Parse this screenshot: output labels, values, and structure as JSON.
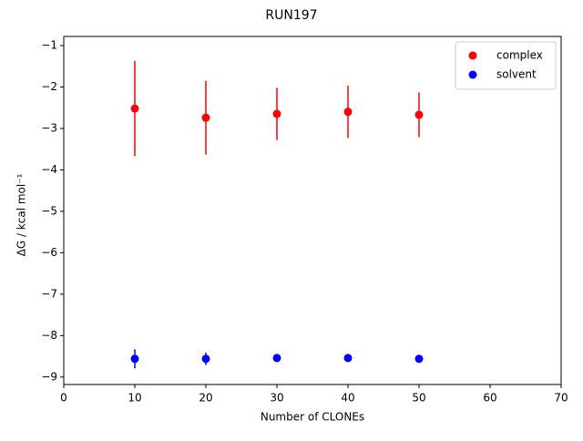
{
  "chart_data": {
    "type": "scatter",
    "title": "RUN197",
    "x_label": "Number of CLONEs",
    "y_label": "ΔG / kcal mol⁻¹",
    "x": [
      10,
      20,
      30,
      40,
      50
    ],
    "series": [
      {
        "name": "complex",
        "color": "#ff0000",
        "values": [
          -2.52,
          -2.74,
          -2.65,
          -2.6,
          -2.67
        ],
        "errors": [
          1.15,
          0.89,
          0.63,
          0.63,
          0.54
        ]
      },
      {
        "name": "solvent",
        "color": "#0000ff",
        "values": [
          -8.56,
          -8.56,
          -8.54,
          -8.54,
          -8.56
        ],
        "errors": [
          0.23,
          0.15,
          0.08,
          0.03,
          0.03
        ]
      }
    ],
    "xlim": [
      0,
      70
    ],
    "xticks": [
      0,
      10,
      20,
      30,
      40,
      50,
      60,
      70
    ],
    "ylim": [
      -9.18,
      -0.78
    ],
    "yticks": [
      {
        "value": -9,
        "label": "−9"
      },
      {
        "value": -8,
        "label": "−8"
      },
      {
        "value": -7,
        "label": "−7"
      },
      {
        "value": -6,
        "label": "−6"
      },
      {
        "value": -5,
        "label": "−5"
      },
      {
        "value": -4,
        "label": "−4"
      },
      {
        "value": -3,
        "label": "−3"
      },
      {
        "value": -2,
        "label": "−2"
      },
      {
        "value": -1,
        "label": "−1"
      }
    ],
    "legend": "upper right"
  }
}
